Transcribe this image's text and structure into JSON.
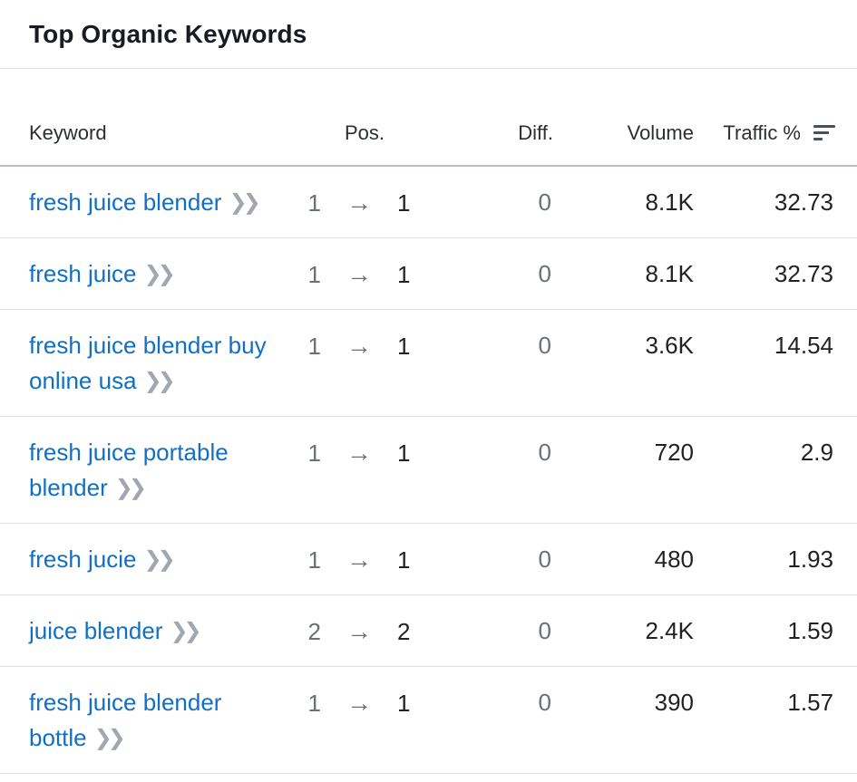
{
  "widget": {
    "title": "Top Organic Keywords"
  },
  "table": {
    "columns": {
      "keyword": "Keyword",
      "position": "Pos.",
      "difficulty": "Diff.",
      "volume": "Volume",
      "traffic": "Traffic %"
    },
    "sort_icon": "sort-descending-icon",
    "rows": [
      {
        "keyword": "fresh juice blender",
        "pos_from": "1",
        "pos_to": "1",
        "diff": "0",
        "volume": "8.1K",
        "traffic": "32.73"
      },
      {
        "keyword": "fresh juice",
        "pos_from": "1",
        "pos_to": "1",
        "diff": "0",
        "volume": "8.1K",
        "traffic": "32.73"
      },
      {
        "keyword": "fresh juice blender buy online usa",
        "pos_from": "1",
        "pos_to": "1",
        "diff": "0",
        "volume": "3.6K",
        "traffic": "14.54"
      },
      {
        "keyword": "fresh juice portable blender",
        "pos_from": "1",
        "pos_to": "1",
        "diff": "0",
        "volume": "720",
        "traffic": "2.9"
      },
      {
        "keyword": "fresh jucie",
        "pos_from": "1",
        "pos_to": "1",
        "diff": "0",
        "volume": "480",
        "traffic": "1.93"
      },
      {
        "keyword": "juice blender",
        "pos_from": "2",
        "pos_to": "2",
        "diff": "0",
        "volume": "2.4K",
        "traffic": "1.59"
      },
      {
        "keyword": "fresh juice blender bottle",
        "pos_from": "1",
        "pos_to": "1",
        "diff": "0",
        "volume": "390",
        "traffic": "1.57"
      }
    ],
    "row_icons": {
      "position_change": "arrow-right-icon",
      "keyword_details": "double-chevron-right-icon"
    }
  },
  "colors": {
    "link": "#1170c4",
    "muted": "#6b6f78",
    "chevron": "#a1a6b0",
    "divider": "#dcdfe4"
  }
}
